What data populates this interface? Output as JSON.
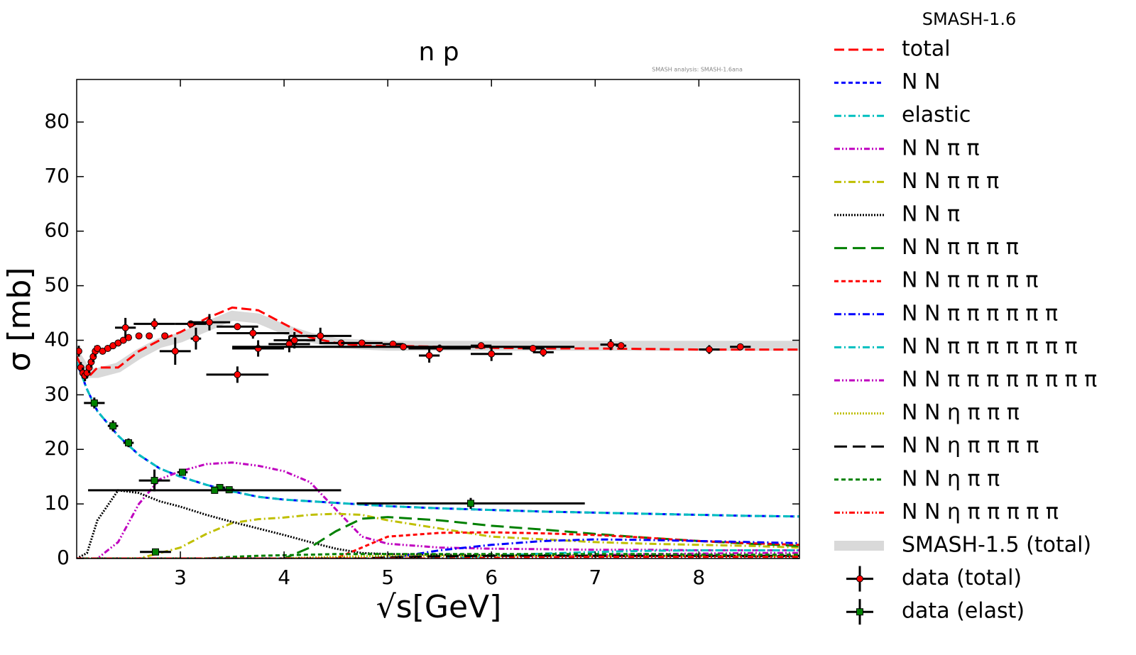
{
  "chart_data": {
    "type": "line",
    "title": "n p",
    "watermark": "SMASH analysis: SMASH-1.6ana",
    "legend_title": "SMASH-1.6",
    "x_label": "√s[GeV]",
    "y_label": "σ [mb]",
    "xlim": [
      2.0,
      8.97
    ],
    "ylim": [
      0,
      87.8
    ],
    "xticks": [
      3,
      4,
      5,
      6,
      7,
      8
    ],
    "yticks": [
      0,
      10,
      20,
      30,
      40,
      50,
      60,
      70,
      80
    ],
    "legend": "outside-right",
    "x": [
      2.0,
      2.1,
      2.2,
      2.4,
      2.6,
      2.8,
      3,
      3.25,
      3.5,
      3.75,
      4,
      4.25,
      4.5,
      4.75,
      5,
      5.5,
      6,
      6.5,
      7,
      7.5,
      8,
      8.5,
      8.97
    ],
    "series": [
      {
        "name": "total",
        "color": "#ff0000",
        "linestyle": "dashed",
        "values": [
          37,
          33,
          35,
          35,
          38,
          40,
          41.5,
          44,
          46,
          45.5,
          43,
          40.5,
          39.5,
          39,
          39,
          38.8,
          38.6,
          38.5,
          38.5,
          38.4,
          38.3,
          38.3,
          38.3
        ]
      },
      {
        "name": "N N",
        "color": "#0000ff",
        "linestyle": "shortdash",
        "values": [
          36,
          31,
          27,
          22.5,
          19,
          16.5,
          15,
          13.5,
          12.3,
          11.3,
          10.8,
          10.5,
          10.2,
          9.9,
          9.6,
          9.2,
          8.9,
          8.6,
          8.4,
          8.2,
          8,
          7.8,
          7.7
        ]
      },
      {
        "name": "elastic",
        "color": "#00bfbf",
        "linestyle": "dashdot",
        "values": [
          36,
          31,
          27,
          22.5,
          19,
          16.5,
          15,
          13.5,
          12.3,
          11.3,
          10.8,
          10.5,
          10.2,
          9.9,
          9.6,
          9.2,
          8.9,
          8.6,
          8.4,
          8.2,
          8,
          7.8,
          7.7
        ]
      },
      {
        "name": "N N π π",
        "color": "#bf00bf",
        "linestyle": "dashdotdot",
        "values": [
          0,
          0,
          0,
          3,
          10,
          14.5,
          16,
          17.3,
          17.6,
          17,
          16,
          14,
          9,
          4,
          2.7,
          2,
          1.8,
          1.7,
          1.6,
          1.6,
          1.5,
          1.5,
          1.5
        ]
      },
      {
        "name": "N N π π π",
        "color": "#bfbf00",
        "linestyle": "dashdot",
        "values": [
          0,
          0,
          0,
          0,
          0,
          1,
          2,
          4.5,
          6.5,
          7.2,
          7.5,
          8,
          8.2,
          8,
          7,
          5.5,
          4,
          3.5,
          3,
          2.7,
          2.5,
          2.3,
          2
        ]
      },
      {
        "name": "N N π",
        "color": "#000000",
        "linestyle": "dotted",
        "values": [
          0,
          1,
          7,
          12.5,
          12,
          10.5,
          9.5,
          8,
          6.7,
          5.5,
          4.3,
          3,
          1.8,
          1,
          0.8,
          0.7,
          0.6,
          0.6,
          0.5,
          0.5,
          0.5,
          0.4,
          0.4
        ]
      },
      {
        "name": "N N π π π π",
        "color": "#008000",
        "linestyle": "longdash",
        "values": [
          0,
          0,
          0,
          0,
          0,
          0,
          0,
          0,
          0,
          0,
          0,
          2,
          5,
          7.3,
          7.6,
          7,
          6,
          5.3,
          4.5,
          3.8,
          3.2,
          2.7,
          2.3
        ]
      },
      {
        "name": "N N π π π π π",
        "color": "#ff0000",
        "linestyle": "shortdash",
        "values": [
          0,
          0,
          0,
          0,
          0,
          0,
          0,
          0,
          0,
          0,
          0,
          0,
          0,
          2,
          4,
          4.7,
          4.8,
          4.6,
          4.3,
          3.8,
          3.2,
          2.8,
          2.5
        ]
      },
      {
        "name": "N N π π π π π π",
        "color": "#0000ff",
        "linestyle": "dashdot",
        "values": [
          0,
          0,
          0,
          0,
          0,
          0,
          0,
          0,
          0,
          0,
          0,
          0,
          0,
          0,
          0,
          1.5,
          2.5,
          3.2,
          3.5,
          3.4,
          3.2,
          3,
          2.8
        ]
      },
      {
        "name": "N N π π π π π π π",
        "color": "#00bfbf",
        "linestyle": "dashdot",
        "values": [
          0,
          0,
          0,
          0,
          0,
          0,
          0,
          0,
          0,
          0,
          0,
          0,
          0,
          0,
          0,
          0,
          0.5,
          0.9,
          1.2,
          1.4,
          1.5,
          1.5,
          1.5
        ]
      },
      {
        "name": "N N π π π π π π π π",
        "color": "#bf00bf",
        "linestyle": "dashdotdot",
        "values": [
          0,
          0,
          0,
          0,
          0,
          0,
          0,
          0,
          0,
          0,
          0,
          0,
          0,
          0,
          0,
          0,
          0,
          0.3,
          0.6,
          0.8,
          0.9,
          1,
          1
        ]
      },
      {
        "name": "N N η π π π",
        "color": "#bfbf00",
        "linestyle": "dotted",
        "values": [
          0,
          0,
          0,
          0,
          0,
          0,
          0,
          0,
          0,
          0,
          0,
          0.2,
          0.3,
          0.4,
          0.5,
          0.5,
          0.5,
          0.5,
          0.5,
          0.5,
          0.5,
          0.5,
          0.5
        ]
      },
      {
        "name": "N N η π π π π",
        "color": "#000000",
        "linestyle": "longdash",
        "values": [
          0,
          0,
          0,
          0,
          0,
          0,
          0,
          0,
          0,
          0,
          0,
          0,
          0,
          0,
          0.2,
          0.4,
          0.5,
          0.5,
          0.5,
          0.5,
          0.5,
          0.5,
          0.5
        ]
      },
      {
        "name": "N N η π π",
        "color": "#008000",
        "linestyle": "shortdash",
        "values": [
          0,
          0,
          0,
          0,
          0,
          0,
          0,
          0,
          0.3,
          0.5,
          0.6,
          0.7,
          0.8,
          0.8,
          0.8,
          0.8,
          0.8,
          0.8,
          0.8,
          0.8,
          0.7,
          0.7,
          0.7
        ]
      },
      {
        "name": "N N η π π π π π",
        "color": "#ff0000",
        "linestyle": "dashdotdot",
        "values": [
          0,
          0,
          0,
          0,
          0,
          0,
          0,
          0,
          0,
          0,
          0,
          0,
          0,
          0,
          0,
          0,
          0.1,
          0.2,
          0.3,
          0.3,
          0.3,
          0.3,
          0.3
        ]
      },
      {
        "name": "SMASH-1.5 (total)",
        "color": "#d9d9d9",
        "linestyle": "band",
        "values": [
          37,
          34,
          34,
          35,
          37.5,
          39.5,
          40.5,
          42.5,
          44.5,
          44,
          42,
          40.5,
          39.5,
          39.2,
          39,
          39,
          39,
          39,
          39,
          39,
          39,
          39,
          39
        ]
      },
      {
        "name": "data (total)",
        "color": "#ff0000",
        "linestyle": "errorbar",
        "x": [
          2.02,
          2.04,
          2.06,
          2.08,
          2.1,
          2.12,
          2.14,
          2.16,
          2.18,
          2.2,
          2.25,
          2.3,
          2.35,
          2.4,
          2.45,
          2.5,
          2.6,
          2.7,
          2.85,
          2.47,
          2.75,
          2.95,
          3.1,
          3.15,
          3.28,
          3.55,
          3.55,
          3.7,
          3.75,
          4.05,
          4.1,
          4.35,
          4.55,
          4.75,
          5.05,
          5.4,
          5.5,
          5.15,
          5.9,
          6.0,
          6.4,
          6.5,
          7.15,
          7.25,
          8.1,
          8.4
        ],
        "values": [
          38,
          35,
          34,
          33.5,
          34,
          35,
          36,
          37,
          38,
          38.5,
          38,
          38.5,
          39,
          39.5,
          40,
          40.5,
          40.8,
          40.8,
          40.8,
          42.3,
          43,
          38,
          43,
          40.3,
          43.3,
          33.7,
          42.5,
          41.3,
          38.5,
          39.3,
          40,
          40.8,
          39.5,
          39.5,
          39.3,
          37.2,
          38.5,
          38.8,
          39,
          37.5,
          38.5,
          37.8,
          39.2,
          39,
          38.3,
          38.8
        ],
        "xerr": [
          0,
          0,
          0,
          0,
          0,
          0,
          0,
          0,
          0,
          0,
          0,
          0,
          0,
          0,
          0,
          0,
          0,
          0,
          0,
          0.1,
          0.2,
          0.15,
          0.15,
          0.05,
          0.2,
          0.3,
          0.2,
          0.35,
          0.25,
          0.2,
          0.2,
          0.3,
          0.2,
          0.2,
          0.1,
          0.1,
          0.3,
          1.65,
          0.1,
          0.2,
          0.1,
          0.1,
          0.1,
          0.05,
          0.1,
          0.1
        ],
        "yerr": [
          1,
          1,
          1,
          1,
          1,
          1,
          1,
          1,
          1,
          0.5,
          0.5,
          0.5,
          0.5,
          0.5,
          0.5,
          0.5,
          0.5,
          0.5,
          0.5,
          1.8,
          1,
          2.5,
          0.5,
          2,
          1.5,
          1.5,
          0.5,
          1,
          1.5,
          1.5,
          1.5,
          1.5,
          0.5,
          0.5,
          0.5,
          1.3,
          0.7,
          0.5,
          0.5,
          1.3,
          0.5,
          0.8,
          1,
          0.5,
          0.8,
          0.5
        ]
      },
      {
        "name": "data (elast)",
        "color": "#008000",
        "linestyle": "errorbar",
        "marker": "square",
        "x": [
          2.17,
          2.35,
          2.5,
          2.75,
          2.76,
          3.02,
          3.38,
          3.47,
          3.33,
          5.8
        ],
        "values": [
          28.5,
          24.3,
          21.2,
          14.3,
          1.2,
          15.8,
          13,
          12.6,
          12.5,
          10.1
        ],
        "xerr": [
          0.1,
          0.05,
          0.05,
          0.15,
          0.15,
          0.05,
          0.05,
          0.05,
          1.22,
          1.1
        ],
        "yerr": [
          1,
          1,
          0.8,
          2,
          0.5,
          0.5,
          0.5,
          0.5,
          0.5,
          1
        ]
      }
    ]
  }
}
